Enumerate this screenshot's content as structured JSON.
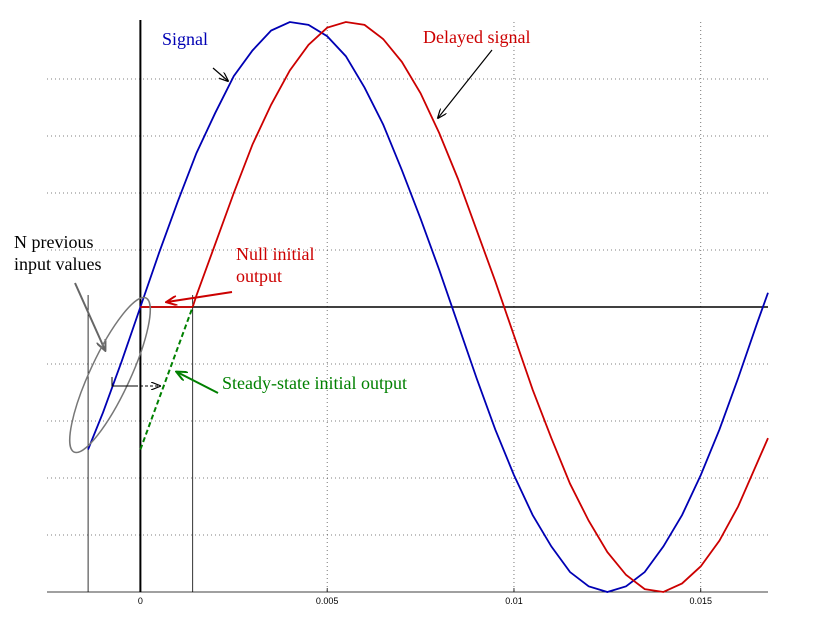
{
  "chart_data": {
    "type": "line",
    "xlim": [
      -0.0025,
      0.0168
    ],
    "ylim": [
      -1,
      1
    ],
    "xticks": [
      0,
      0.005,
      0.01,
      0.015
    ],
    "yticks": [
      -0.8,
      -0.6,
      -0.4,
      -0.2,
      0.2,
      0.4,
      0.6,
      0.8
    ],
    "grid": true,
    "annotations": [
      "N previous input values"
    ],
    "series": [
      {
        "name": "Signal",
        "color": "#0000b4",
        "dash": false,
        "x": [
          -0.0014,
          -0.001,
          -0.0005,
          0,
          0.0005,
          0.001,
          0.0015,
          0.002,
          0.0025,
          0.003,
          0.0035,
          0.004,
          0.0045,
          0.005,
          0.0055,
          0.006,
          0.0065,
          0.007,
          0.0075,
          0.008,
          0.0085,
          0.009,
          0.0095,
          0.01,
          0.0105,
          0.011,
          0.0115,
          0.012,
          0.0125,
          0.013,
          0.0135,
          0.014,
          0.0145,
          0.015,
          0.0155,
          0.016,
          0.0165,
          0.0168
        ],
        "values": [
          -0.5,
          -0.37,
          -0.19,
          0,
          0.19,
          0.37,
          0.54,
          0.68,
          0.81,
          0.9,
          0.97,
          1.0,
          0.99,
          0.95,
          0.88,
          0.77,
          0.64,
          0.48,
          0.31,
          0.13,
          -0.06,
          -0.25,
          -0.43,
          -0.59,
          -0.73,
          -0.84,
          -0.93,
          -0.98,
          -1.0,
          -0.98,
          -0.93,
          -0.84,
          -0.73,
          -0.59,
          -0.43,
          -0.25,
          -0.06,
          0.05
        ]
      },
      {
        "name": "Delayed signal",
        "color": "#cc0000",
        "dash": false,
        "x": [
          0.0014,
          0.0015,
          0.002,
          0.0025,
          0.003,
          0.0035,
          0.004,
          0.0045,
          0.005,
          0.0055,
          0.006,
          0.0065,
          0.007,
          0.0075,
          0.008,
          0.0085,
          0.009,
          0.0095,
          0.01,
          0.0105,
          0.011,
          0.0115,
          0.012,
          0.0125,
          0.013,
          0.0135,
          0.014,
          0.0145,
          0.015,
          0.0155,
          0.016,
          0.0165,
          0.0168
        ],
        "values": [
          0,
          0.04,
          0.22,
          0.4,
          0.57,
          0.71,
          0.83,
          0.92,
          0.98,
          1.0,
          0.99,
          0.94,
          0.86,
          0.75,
          0.61,
          0.45,
          0.27,
          0.09,
          -0.1,
          -0.29,
          -0.46,
          -0.62,
          -0.75,
          -0.86,
          -0.94,
          -0.99,
          -1.0,
          -0.97,
          -0.91,
          -0.82,
          -0.7,
          -0.55,
          -0.46
        ]
      },
      {
        "name": "Null initial output",
        "color": "#cc0000",
        "dash": false,
        "x": [
          0,
          0.0014
        ],
        "values": [
          0,
          0
        ]
      },
      {
        "name": "Steady-state initial output",
        "color": "#008000",
        "dash": true,
        "x": [
          0,
          0.0014
        ],
        "values": [
          -0.5,
          0
        ]
      }
    ]
  }
}
